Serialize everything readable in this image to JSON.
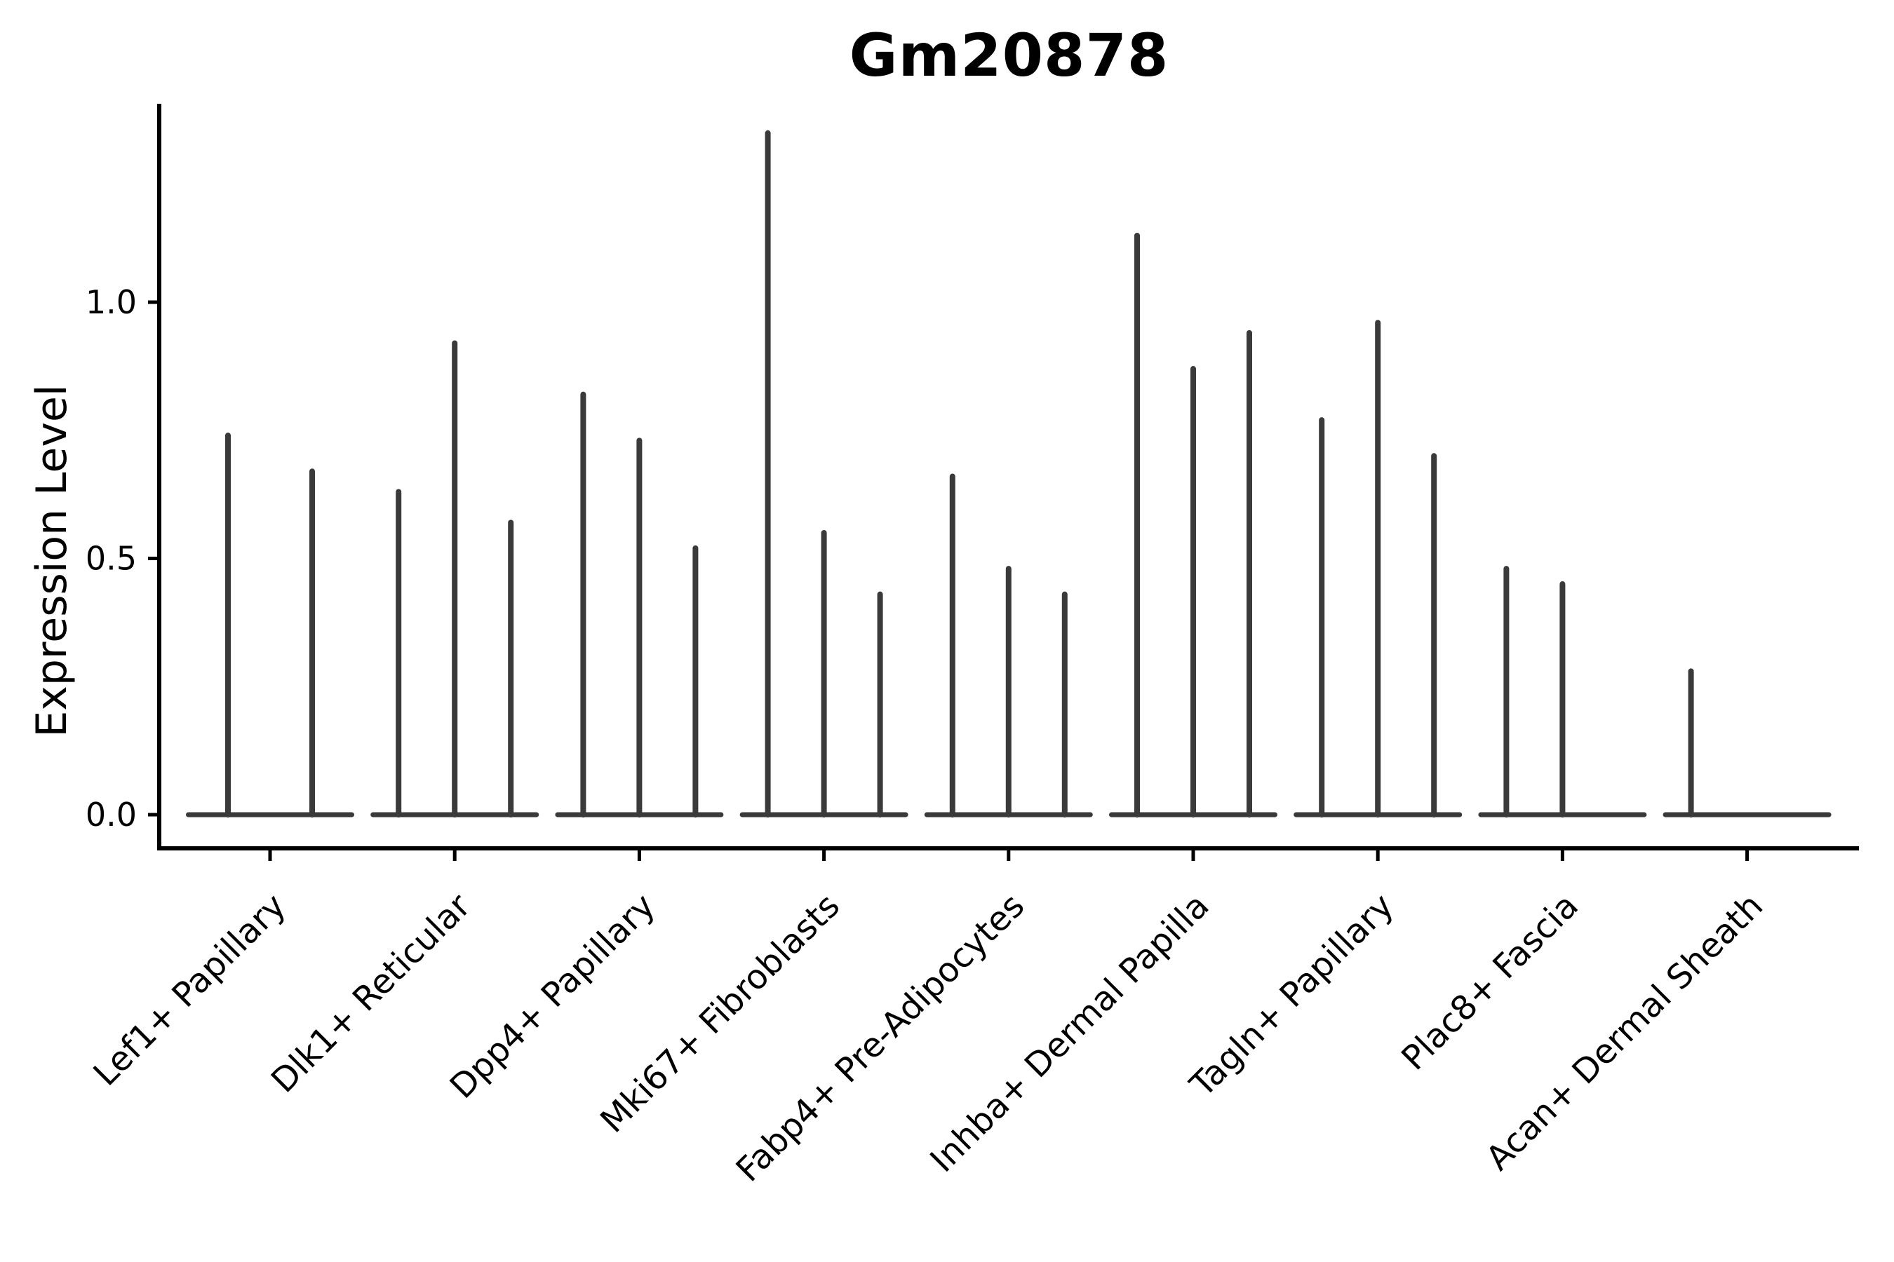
{
  "figure": {
    "title": "Gm20878",
    "background_color": "#ffffff"
  },
  "y_axis": {
    "label": "Expression Level",
    "tick_labels": [
      "0.0",
      "0.5",
      "1.0"
    ],
    "tick_values": [
      0.0,
      0.5,
      1.0
    ]
  },
  "x_axis": {
    "categories": [
      "Lef1+ Papillary",
      "Dlk1+ Reticular",
      "Dpp4+ Papillary",
      "Mki67+ Fibroblasts",
      "Fabp4+ Pre-Adipocytes",
      "Inhba+ Dermal Papilla",
      "Tagln+ Papillary",
      "Plac8+ Fascia",
      "Acan+ Dermal Sheath"
    ]
  },
  "chart_data": {
    "type": "violin",
    "title": "Gm20878",
    "xlabel": "",
    "ylabel": "Expression Level",
    "ylim": [
      -0.07,
      1.39
    ],
    "yticks": [
      0.0,
      0.5,
      1.0
    ],
    "ytick_labels": [
      "0.0",
      "0.5",
      "1.0"
    ],
    "grid": false,
    "legend_position": "none",
    "description": "Each category shows 2-3 violins collapsed to a flat base at 0 with a thin spike rising to the max expression value",
    "categories": [
      "Lef1+ Papillary",
      "Dlk1+ Reticular",
      "Dpp4+ Papillary",
      "Mki67+ Fibroblasts",
      "Fabp4+ Pre-Adipocytes",
      "Inhba+ Dermal Papilla",
      "Tagln+ Papillary",
      "Plac8+ Fascia",
      "Acan+ Dermal Sheath"
    ],
    "series": [
      {
        "name": "Lef1+ Papillary",
        "violin_max": [
          0.74,
          0.67
        ]
      },
      {
        "name": "Dlk1+ Reticular",
        "violin_max": [
          0.63,
          0.92,
          0.57
        ]
      },
      {
        "name": "Dpp4+ Papillary",
        "violin_max": [
          0.82,
          0.73,
          0.52
        ]
      },
      {
        "name": "Mki67+ Fibroblasts",
        "violin_max": [
          1.33,
          0.55,
          0.43
        ]
      },
      {
        "name": "Fabp4+ Pre-Adipocytes",
        "violin_max": [
          0.66,
          0.48,
          0.43
        ]
      },
      {
        "name": "Inhba+ Dermal Papilla",
        "violin_max": [
          1.13,
          0.87,
          0.94
        ]
      },
      {
        "name": "Tagln+ Papillary",
        "violin_max": [
          0.77,
          0.96,
          0.7
        ]
      },
      {
        "name": "Plac8+ Fascia",
        "violin_max": [
          0.48,
          0.45,
          0.0
        ]
      },
      {
        "name": "Acan+ Dermal Sheath",
        "violin_max": [
          0.28,
          0.0,
          0.0
        ]
      }
    ],
    "style": {
      "violin_color": "#3a3a3a",
      "axis_color": "#000000",
      "tick_label_color": "#000000"
    }
  }
}
